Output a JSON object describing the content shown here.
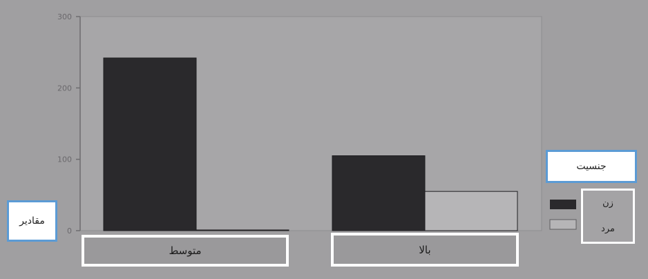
{
  "chart_data": {
    "type": "bar",
    "categories": [
      "متوسط",
      "بالا"
    ],
    "series": [
      {
        "name": "زن",
        "color": "#2a292c",
        "values": [
          242,
          105
        ]
      },
      {
        "name": "مرد",
        "color": "#b6b5b7",
        "values": [
          1,
          55
        ]
      }
    ],
    "ylim": [
      0,
      300
    ],
    "yticks": [
      0,
      100,
      200,
      300
    ],
    "ylabel": "مقادیر",
    "legend_title": "جنسیت",
    "legend_position": "right",
    "grid": false
  }
}
